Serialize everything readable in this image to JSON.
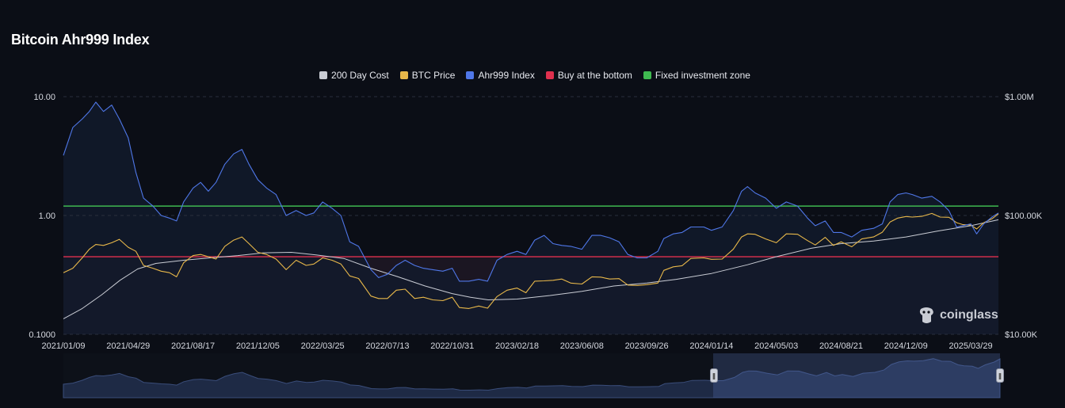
{
  "title": "Bitcoin Ahr999 Index",
  "legend": [
    {
      "label": "200 Day Cost",
      "color": "#c9ccd4"
    },
    {
      "label": "BTC Price",
      "color": "#e8b84a"
    },
    {
      "label": "Ahr999 Index",
      "color": "#4f77e8"
    },
    {
      "label": "Buy at the bottom",
      "color": "#e0304e"
    },
    {
      "label": "Fixed investment zone",
      "color": "#3fb950"
    }
  ],
  "watermark": "coinglass",
  "chart_data": {
    "type": "line",
    "title": "Bitcoin Ahr999 Index",
    "x_ticks": [
      "2021/01/09",
      "2021/04/29",
      "2021/08/17",
      "2021/12/05",
      "2022/03/25",
      "2022/07/13",
      "2022/10/31",
      "2023/02/18",
      "2023/06/08",
      "2023/09/26",
      "2024/01/14",
      "2024/05/03",
      "2024/08/21",
      "2024/12/09",
      "2025/03/29"
    ],
    "y_left_ticks": [
      "10.00",
      "1.00",
      "0.1000"
    ],
    "y_right_ticks": [
      "$1.00M",
      "$100.00K",
      "$10.00K"
    ],
    "y_left_scale": "log",
    "y_left_range": [
      0.1,
      10
    ],
    "y_right_scale": "log",
    "y_right_range": [
      10000,
      1000000
    ],
    "x_range": [
      "2021/01/09",
      "2025/05/15"
    ],
    "horizontal_lines": [
      {
        "name": "Fixed investment zone",
        "value": 1.2,
        "color": "#3fb950"
      },
      {
        "name": "Buy at the bottom",
        "value": 0.45,
        "color": "#e0304e"
      }
    ],
    "series": [
      {
        "name": "Ahr999 Index",
        "axis": "left",
        "color": "#4f77e8",
        "points": [
          [
            "2021/01/09",
            3.2
          ],
          [
            "2021/01/25",
            5.5
          ],
          [
            "2021/02/10",
            6.5
          ],
          [
            "2021/02/22",
            7.5
          ],
          [
            "2021/03/05",
            9.0
          ],
          [
            "2021/03/18",
            7.5
          ],
          [
            "2021/04/01",
            8.5
          ],
          [
            "2021/04/14",
            6.5
          ],
          [
            "2021/04/29",
            4.5
          ],
          [
            "2021/05/12",
            2.3
          ],
          [
            "2021/05/25",
            1.4
          ],
          [
            "2021/06/10",
            1.2
          ],
          [
            "2021/06/24",
            1.0
          ],
          [
            "2021/07/08",
            0.95
          ],
          [
            "2021/07/20",
            0.9
          ],
          [
            "2021/08/01",
            1.3
          ],
          [
            "2021/08/17",
            1.7
          ],
          [
            "2021/08/30",
            1.9
          ],
          [
            "2021/09/12",
            1.6
          ],
          [
            "2021/09/25",
            1.9
          ],
          [
            "2021/10/10",
            2.7
          ],
          [
            "2021/10/25",
            3.3
          ],
          [
            "2021/11/08",
            3.6
          ],
          [
            "2021/11/20",
            2.7
          ],
          [
            "2021/12/05",
            2.0
          ],
          [
            "2021/12/20",
            1.7
          ],
          [
            "2022/01/05",
            1.5
          ],
          [
            "2022/01/22",
            1.0
          ],
          [
            "2022/02/08",
            1.1
          ],
          [
            "2022/02/25",
            1.0
          ],
          [
            "2022/03/10",
            1.05
          ],
          [
            "2022/03/25",
            1.3
          ],
          [
            "2022/04/10",
            1.15
          ],
          [
            "2022/04/25",
            1.0
          ],
          [
            "2022/05/10",
            0.6
          ],
          [
            "2022/05/25",
            0.55
          ],
          [
            "2022/06/15",
            0.35
          ],
          [
            "2022/06/28",
            0.3
          ],
          [
            "2022/07/13",
            0.32
          ],
          [
            "2022/07/28",
            0.38
          ],
          [
            "2022/08/12",
            0.42
          ],
          [
            "2022/08/28",
            0.38
          ],
          [
            "2022/09/12",
            0.36
          ],
          [
            "2022/09/28",
            0.35
          ],
          [
            "2022/10/15",
            0.34
          ],
          [
            "2022/10/31",
            0.36
          ],
          [
            "2022/11/12",
            0.28
          ],
          [
            "2022/11/28",
            0.28
          ],
          [
            "2022/12/15",
            0.29
          ],
          [
            "2022/12/30",
            0.28
          ],
          [
            "2023/01/15",
            0.42
          ],
          [
            "2023/02/01",
            0.47
          ],
          [
            "2023/02/18",
            0.5
          ],
          [
            "2023/03/05",
            0.47
          ],
          [
            "2023/03/20",
            0.62
          ],
          [
            "2023/04/05",
            0.68
          ],
          [
            "2023/04/20",
            0.58
          ],
          [
            "2023/05/05",
            0.56
          ],
          [
            "2023/05/20",
            0.55
          ],
          [
            "2023/06/08",
            0.52
          ],
          [
            "2023/06/25",
            0.68
          ],
          [
            "2023/07/10",
            0.68
          ],
          [
            "2023/07/25",
            0.65
          ],
          [
            "2023/08/10",
            0.6
          ],
          [
            "2023/08/25",
            0.47
          ],
          [
            "2023/09/10",
            0.44
          ],
          [
            "2023/09/26",
            0.44
          ],
          [
            "2023/10/15",
            0.5
          ],
          [
            "2023/10/25",
            0.64
          ],
          [
            "2023/11/10",
            0.7
          ],
          [
            "2023/11/25",
            0.72
          ],
          [
            "2023/12/10",
            0.8
          ],
          [
            "2024/01/01",
            0.8
          ],
          [
            "2024/01/14",
            0.75
          ],
          [
            "2024/02/01",
            0.8
          ],
          [
            "2024/02/20",
            1.1
          ],
          [
            "2024/03/05",
            1.6
          ],
          [
            "2024/03/15",
            1.75
          ],
          [
            "2024/03/28",
            1.55
          ],
          [
            "2024/04/15",
            1.4
          ],
          [
            "2024/05/03",
            1.15
          ],
          [
            "2024/05/20",
            1.3
          ],
          [
            "2024/06/08",
            1.2
          ],
          [
            "2024/06/25",
            0.95
          ],
          [
            "2024/07/08",
            0.82
          ],
          [
            "2024/07/25",
            0.9
          ],
          [
            "2024/08/08",
            0.72
          ],
          [
            "2024/08/21",
            0.72
          ],
          [
            "2024/09/08",
            0.66
          ],
          [
            "2024/09/25",
            0.75
          ],
          [
            "2024/10/15",
            0.78
          ],
          [
            "2024/10/30",
            0.85
          ],
          [
            "2024/11/12",
            1.3
          ],
          [
            "2024/11/25",
            1.5
          ],
          [
            "2024/12/09",
            1.55
          ],
          [
            "2024/12/20",
            1.5
          ],
          [
            "2025/01/05",
            1.4
          ],
          [
            "2025/01/22",
            1.45
          ],
          [
            "2025/02/05",
            1.3
          ],
          [
            "2025/02/20",
            1.1
          ],
          [
            "2025/03/05",
            0.8
          ],
          [
            "2025/03/15",
            0.82
          ],
          [
            "2025/03/29",
            0.85
          ],
          [
            "2025/04/08",
            0.7
          ],
          [
            "2025/04/20",
            0.85
          ],
          [
            "2025/05/05",
            0.98
          ],
          [
            "2025/05/15",
            1.05
          ]
        ]
      },
      {
        "name": "BTC Price",
        "axis": "right",
        "color": "#e8b84a",
        "points": [
          [
            "2021/01/09",
            33000
          ],
          [
            "2021/01/25",
            36000
          ],
          [
            "2021/02/10",
            44000
          ],
          [
            "2021/02/22",
            52000
          ],
          [
            "2021/03/05",
            57000
          ],
          [
            "2021/03/18",
            56000
          ],
          [
            "2021/04/01",
            59000
          ],
          [
            "2021/04/14",
            63000
          ],
          [
            "2021/04/29",
            54000
          ],
          [
            "2021/05/12",
            50000
          ],
          [
            "2021/05/25",
            38000
          ],
          [
            "2021/06/10",
            36000
          ],
          [
            "2021/06/24",
            34000
          ],
          [
            "2021/07/08",
            33000
          ],
          [
            "2021/07/20",
            30500
          ],
          [
            "2021/08/01",
            40000
          ],
          [
            "2021/08/17",
            46000
          ],
          [
            "2021/08/30",
            47000
          ],
          [
            "2021/09/12",
            45000
          ],
          [
            "2021/09/25",
            43000
          ],
          [
            "2021/10/10",
            55000
          ],
          [
            "2021/10/25",
            62000
          ],
          [
            "2021/11/08",
            66000
          ],
          [
            "2021/11/20",
            58000
          ],
          [
            "2021/12/05",
            49000
          ],
          [
            "2021/12/20",
            47000
          ],
          [
            "2022/01/05",
            43000
          ],
          [
            "2022/01/22",
            35000
          ],
          [
            "2022/02/08",
            42000
          ],
          [
            "2022/02/25",
            38000
          ],
          [
            "2022/03/10",
            39000
          ],
          [
            "2022/03/25",
            44000
          ],
          [
            "2022/04/10",
            42000
          ],
          [
            "2022/04/25",
            39000
          ],
          [
            "2022/05/10",
            31000
          ],
          [
            "2022/05/25",
            29500
          ],
          [
            "2022/06/15",
            21000
          ],
          [
            "2022/06/28",
            20000
          ],
          [
            "2022/07/13",
            20000
          ],
          [
            "2022/07/28",
            23500
          ],
          [
            "2022/08/12",
            24000
          ],
          [
            "2022/08/28",
            20000
          ],
          [
            "2022/09/12",
            20500
          ],
          [
            "2022/09/28",
            19500
          ],
          [
            "2022/10/15",
            19200
          ],
          [
            "2022/10/31",
            20500
          ],
          [
            "2022/11/12",
            16800
          ],
          [
            "2022/11/28",
            16500
          ],
          [
            "2022/12/15",
            17300
          ],
          [
            "2022/12/30",
            16600
          ],
          [
            "2023/01/15",
            20800
          ],
          [
            "2023/02/01",
            23500
          ],
          [
            "2023/02/18",
            24500
          ],
          [
            "2023/03/05",
            22400
          ],
          [
            "2023/03/20",
            28000
          ],
          [
            "2023/04/05",
            28200
          ],
          [
            "2023/04/20",
            28500
          ],
          [
            "2023/05/05",
            29200
          ],
          [
            "2023/05/20",
            27000
          ],
          [
            "2023/06/08",
            26500
          ],
          [
            "2023/06/25",
            30500
          ],
          [
            "2023/07/10",
            30300
          ],
          [
            "2023/07/25",
            29200
          ],
          [
            "2023/08/10",
            29400
          ],
          [
            "2023/08/25",
            26000
          ],
          [
            "2023/09/10",
            25800
          ],
          [
            "2023/09/26",
            26200
          ],
          [
            "2023/10/15",
            27000
          ],
          [
            "2023/10/25",
            34500
          ],
          [
            "2023/11/10",
            37000
          ],
          [
            "2023/11/25",
            37800
          ],
          [
            "2023/12/10",
            43500
          ],
          [
            "2024/01/01",
            44000
          ],
          [
            "2024/01/14",
            42800
          ],
          [
            "2024/02/01",
            43000
          ],
          [
            "2024/02/20",
            52000
          ],
          [
            "2024/03/05",
            66000
          ],
          [
            "2024/03/15",
            70000
          ],
          [
            "2024/03/28",
            69500
          ],
          [
            "2024/04/15",
            63500
          ],
          [
            "2024/05/03",
            59000
          ],
          [
            "2024/05/20",
            70000
          ],
          [
            "2024/06/08",
            69500
          ],
          [
            "2024/06/25",
            61500
          ],
          [
            "2024/07/08",
            56500
          ],
          [
            "2024/07/25",
            65500
          ],
          [
            "2024/08/08",
            56000
          ],
          [
            "2024/08/21",
            60000
          ],
          [
            "2024/09/08",
            54500
          ],
          [
            "2024/09/25",
            63500
          ],
          [
            "2024/10/15",
            66000
          ],
          [
            "2024/10/30",
            72300
          ],
          [
            "2024/11/12",
            88000
          ],
          [
            "2024/11/25",
            95000
          ],
          [
            "2024/12/09",
            98000
          ],
          [
            "2024/12/20",
            97000
          ],
          [
            "2025/01/05",
            98300
          ],
          [
            "2025/01/22",
            104000
          ],
          [
            "2025/02/05",
            97000
          ],
          [
            "2025/02/20",
            96500
          ],
          [
            "2025/03/05",
            87000
          ],
          [
            "2025/03/15",
            84000
          ],
          [
            "2025/03/29",
            83000
          ],
          [
            "2025/04/08",
            77000
          ],
          [
            "2025/04/20",
            87000
          ],
          [
            "2025/05/05",
            94500
          ],
          [
            "2025/05/15",
            103500
          ]
        ]
      },
      {
        "name": "200 Day Cost",
        "axis": "right",
        "color": "#c9ccd4",
        "points": [
          [
            "2021/01/09",
            13500
          ],
          [
            "2021/02/10",
            16500
          ],
          [
            "2021/03/15",
            21500
          ],
          [
            "2021/04/15",
            28500
          ],
          [
            "2021/05/15",
            35500
          ],
          [
            "2021/06/15",
            39500
          ],
          [
            "2021/08/01",
            42000
          ],
          [
            "2021/09/15",
            44000
          ],
          [
            "2021/11/01",
            46000
          ],
          [
            "2021/12/15",
            48500
          ],
          [
            "2022/01/31",
            49000
          ],
          [
            "2022/03/15",
            46500
          ],
          [
            "2022/04/30",
            43500
          ],
          [
            "2022/06/15",
            36000
          ],
          [
            "2022/07/31",
            30500
          ],
          [
            "2022/09/15",
            25500
          ],
          [
            "2022/10/31",
            22000
          ],
          [
            "2022/12/01",
            20500
          ],
          [
            "2022/12/31",
            19500
          ],
          [
            "2023/02/18",
            19800
          ],
          [
            "2023/04/15",
            21200
          ],
          [
            "2023/06/08",
            23000
          ],
          [
            "2023/08/01",
            25500
          ],
          [
            "2023/09/26",
            27000
          ],
          [
            "2023/11/15",
            29000
          ],
          [
            "2024/01/14",
            32500
          ],
          [
            "2024/03/15",
            38500
          ],
          [
            "2024/05/03",
            45000
          ],
          [
            "2024/07/01",
            53000
          ],
          [
            "2024/08/21",
            58000
          ],
          [
            "2024/10/15",
            61000
          ],
          [
            "2024/12/09",
            66000
          ],
          [
            "2025/02/01",
            74000
          ],
          [
            "2025/03/29",
            82000
          ],
          [
            "2025/05/15",
            92000
          ]
        ]
      }
    ]
  }
}
